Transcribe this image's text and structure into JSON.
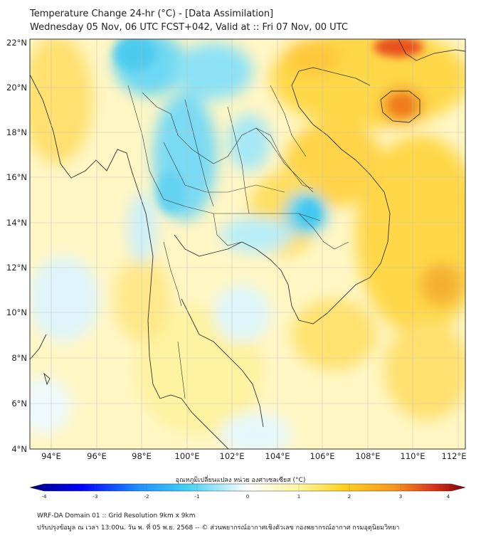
{
  "title_line1": "Temperature Change 24-hr (°C) - [Data Assimilation]",
  "title_line2": "Wednesday 05 Nov, 06 UTC FCST+042, Valid at :: Fri 07 Nov, 00 UTC",
  "lat_labels": [
    "22°N",
    "20°N",
    "18°N",
    "16°N",
    "14°N",
    "12°N",
    "10°N",
    "8°N",
    "6°N",
    "4°N"
  ],
  "lon_labels": [
    "94°E",
    "96°E",
    "98°E",
    "100°E",
    "102°E",
    "104°E",
    "106°E",
    "108°E",
    "110°E",
    "112°E"
  ],
  "colorbar": {
    "title": "อุณหภูมิเปลี่ยนแปลง หน่วย องศาเซลเซียส (°C)",
    "ticks": [
      "-4",
      "-3",
      "-2",
      "-1",
      "0",
      "1",
      "2",
      "3",
      "4"
    ],
    "range": [
      -4,
      4
    ],
    "colors": [
      "#00007f",
      "#0000ff",
      "#1e90ff",
      "#3fd0f5",
      "#ffffff",
      "#fff59a",
      "#ffd21a",
      "#f7941d",
      "#d7301f",
      "#7f0000"
    ]
  },
  "footer_line1": "WRF-DA Domain 01 :: Grid Resolution 9km x 9km",
  "footer_line2": "ปรับปรุงข้อมูล ณ เวลา 13:00น. วัน พ. ที่ 05 พ.ย. 2568 -- © ส่วนพยากรณ์อากาศเชิงตัวเลข กองพยากรณ์อากาศ กรมอุตุนิยมวิทยา",
  "colors": {
    "warm": "#ffe066",
    "cool": "#5ad2f0",
    "hot": "#f5a623",
    "red": "#e03020"
  }
}
